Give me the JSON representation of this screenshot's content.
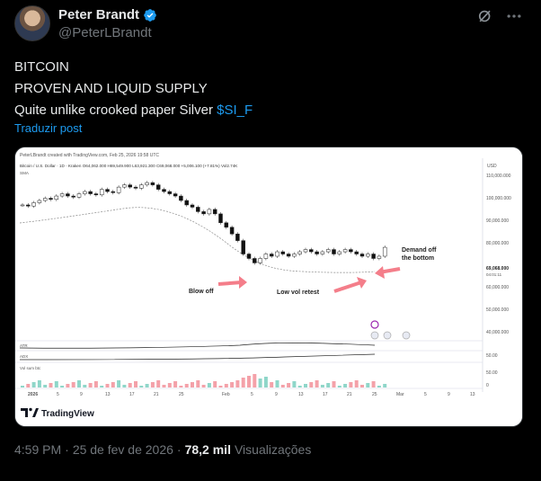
{
  "author": {
    "name": "Peter Brandt",
    "handle": "@PeterLBrandt",
    "verified_color": "#1d9bf0"
  },
  "tweet": {
    "lines": [
      "BITCOIN",
      "PROVEN AND LIQUID SUPPLY",
      "Quite unlike crooked paper Silver "
    ],
    "cashtag": "$SI_F",
    "translate_label": "Traduzir post"
  },
  "chart_image": {
    "created_with": "PeterLBrandt created with TradingView.com, Feb 25, 2026 19:58 UTC",
    "symbol_line": "Bitcoin / U.S. Dollar · 1D · Kraken  O64,062.000  H69,549.900  L63,921.300  C69,068.000  +5,006.100 (+7.81%)  Vol2.74K",
    "ma_label": "SMA",
    "currency": "USD",
    "price_ticks": [
      "110,000.000",
      "100,000.000",
      "90,000.000",
      "80,000.000",
      "70,000.000",
      "60,000.000",
      "50,000.000",
      "40,000.000"
    ],
    "last_price": "69,068.000",
    "last_time": "04:01:11",
    "annotations": [
      "Blow off",
      "Low vol retest",
      "Demand off",
      "the bottom"
    ],
    "indicator_labels": [
      "ATR",
      "ADX",
      "Vol sum btc"
    ],
    "indicator_ticks": [
      "50.00",
      "50.00",
      "0"
    ],
    "x_ticks": [
      "2026",
      "5",
      "9",
      "13",
      "17",
      "21",
      "25",
      "Feb",
      "5",
      "9",
      "13",
      "17",
      "21",
      "25",
      "Mar",
      "5",
      "9",
      "13"
    ],
    "logo_text": "TradingView"
  },
  "footer": {
    "time": "4:59 PM",
    "date": "25 de fev de 2026",
    "views_count": "78,2 mil",
    "views_label": "Visualizações"
  },
  "icons": {
    "grok": "slash-circle-icon",
    "more": "more-icon"
  }
}
